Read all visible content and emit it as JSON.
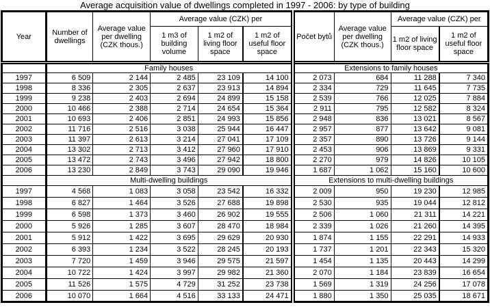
{
  "title": "Average acquisition value of dwellings completed in 1997 - 2006: by type of building",
  "header": {
    "year": "Year",
    "left": {
      "number_of_dwellings": "Number of dwellings",
      "avg_value_per_dwelling": "Average value per dwelling (CZK thous.)",
      "avg_value_group": "Average value (CZK) per",
      "sub": [
        "1 m3 of building volume",
        "1 m2 of living floor space",
        "1 m2 of useful floor space"
      ]
    },
    "right": {
      "pocet_bytu": "Počet bytů",
      "avg_value_per_dwelling": "Average value per dwelling (CZK thous.)",
      "avg_value_group": "Average value (CZK) per",
      "sub": [
        "1 m2 of living floor space",
        "1 m2 of useful floor space"
      ]
    }
  },
  "sections": [
    {
      "left_label": "Family houses",
      "right_label": "Extensions to family houses",
      "rows": [
        {
          "year": "1997",
          "left": [
            "6 509",
            "2 144",
            "2 485",
            "23 109",
            "14 100"
          ],
          "right": [
            "2 073",
            "684",
            "11 288",
            "7 340"
          ]
        },
        {
          "year": "1998",
          "left": [
            "8 336",
            "2 305",
            "2 637",
            "23 913",
            "14 894"
          ],
          "right": [
            "2 334",
            "729",
            "11 645",
            "7 735"
          ]
        },
        {
          "year": "1999",
          "left": [
            "9 238",
            "2 403",
            "2 694",
            "24 899",
            "15 158"
          ],
          "right": [
            "2 539",
            "766",
            "12 025",
            "7 884"
          ]
        },
        {
          "year": "2000",
          "left": [
            "10 466",
            "2 388",
            "2 714",
            "24 654",
            "15 364"
          ],
          "right": [
            "2 911",
            "795",
            "12 582",
            "8 324"
          ]
        },
        {
          "year": "2001",
          "left": [
            "10 693",
            "2 406",
            "2 851",
            "24 993",
            "15 856"
          ],
          "right": [
            "2 948",
            "836",
            "13 021",
            "8 567"
          ]
        },
        {
          "year": "2002",
          "left": [
            "11 716",
            "2 516",
            "3 038",
            "25 944",
            "16 447"
          ],
          "right": [
            "2 957",
            "877",
            "13 642",
            "9 081"
          ]
        },
        {
          "year": "2003",
          "left": [
            "11 397",
            "2 613",
            "3 214",
            "27 041",
            "17 109"
          ],
          "right": [
            "2 357",
            "890",
            "13 726",
            "9 144"
          ]
        },
        {
          "year": "2004",
          "left": [
            "13 302",
            "2 713",
            "3 412",
            "27 960",
            "17 910"
          ],
          "right": [
            "2 453",
            "906",
            "13 869",
            "9 331"
          ]
        },
        {
          "year": "2005",
          "left": [
            "13 472",
            "2 743",
            "3 496",
            "27 942",
            "18 800"
          ],
          "right": [
            "2 270",
            "979",
            "14 826",
            "10 105"
          ]
        },
        {
          "year": "2006",
          "left": [
            "13 230",
            "2 849",
            "3 743",
            "29 090",
            "19 946"
          ],
          "right": [
            "1 687",
            "1 062",
            "15 160",
            "10 600"
          ]
        }
      ]
    },
    {
      "left_label": "Multi-dwelling buildings",
      "right_label": "Extensions to multi-dwelling buildings",
      "rows": [
        {
          "year": "1997",
          "left": [
            "4 568",
            "1 083",
            "3 058",
            "23 542",
            "16 332"
          ],
          "right": [
            "2 009",
            "950",
            "19 230",
            "12 985"
          ]
        },
        {
          "year": "1998",
          "left": [
            "6 827",
            "1 464",
            "3 526",
            "27 688",
            "19 898"
          ],
          "right": [
            "2 530",
            "935",
            "19 044",
            "12 812"
          ]
        },
        {
          "year": "1999",
          "left": [
            "6 598",
            "1 373",
            "3 460",
            "26 902",
            "19 555"
          ],
          "right": [
            "2 506",
            "1 060",
            "21 311",
            "14 221"
          ]
        },
        {
          "year": "2000",
          "left": [
            "5 926",
            "1 285",
            "3 607",
            "28 470",
            "18 984"
          ],
          "right": [
            "2 339",
            "1 026",
            "21 260",
            "14 395"
          ]
        },
        {
          "year": "2001",
          "left": [
            "5 912",
            "1 422",
            "3 695",
            "29 629",
            "20 930"
          ],
          "right": [
            "1 874",
            "1 155",
            "22 291",
            "14 933"
          ]
        },
        {
          "year": "2002",
          "left": [
            "6 393",
            "1 234",
            "3 522",
            "28 245",
            "20 193"
          ],
          "right": [
            "1 737",
            "1 201",
            "22 343",
            "15 320"
          ]
        },
        {
          "year": "2003",
          "left": [
            "7 720",
            "1 459",
            "3 946",
            "29 575",
            "21 597"
          ],
          "right": [
            "1 454",
            "1 135",
            "20 443",
            "14 299"
          ]
        },
        {
          "year": "2004",
          "left": [
            "10 722",
            "1 424",
            "3 997",
            "29 982",
            "21 360"
          ],
          "right": [
            "2 070",
            "1 184",
            "23 839",
            "16 654"
          ]
        },
        {
          "year": "2005",
          "left": [
            "11 526",
            "1 575",
            "4 729",
            "31 252",
            "23 738"
          ],
          "right": [
            "1 569",
            "1 319",
            "24 256",
            "17 078"
          ]
        },
        {
          "year": "2006",
          "left": [
            "10 070",
            "1 664",
            "4 516",
            "33 133",
            "24 471"
          ],
          "right": [
            "1 880",
            "1 350",
            "25 035",
            "18 671"
          ]
        }
      ]
    }
  ]
}
